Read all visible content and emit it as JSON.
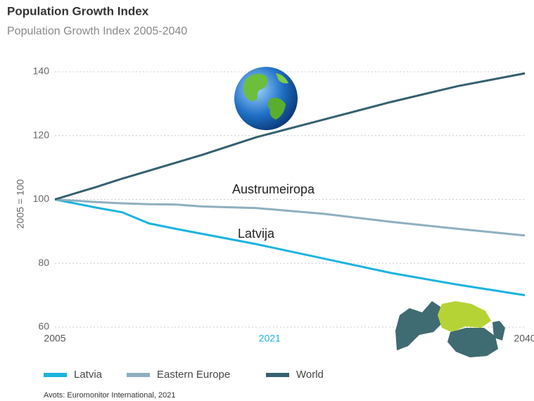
{
  "chart_data": {
    "type": "line",
    "title": "Population Growth Index",
    "subtitle": "Population Growth Index 2005-2040",
    "y_label": "2005 = 100",
    "x": [
      2005,
      2008,
      2010,
      2012,
      2014,
      2016,
      2020,
      2025,
      2030,
      2035,
      2040
    ],
    "series": [
      {
        "name": "Latvia",
        "color": "#1ab4dd",
        "values": [
          100,
          97.5,
          96,
          92.5,
          90.8,
          89.2,
          86,
          81.5,
          77,
          73.3,
          70
        ]
      },
      {
        "name": "Eastern Europe",
        "color": "#8fafc0",
        "values": [
          100,
          99.2,
          98.8,
          98.5,
          98.4,
          97.8,
          97.3,
          95.5,
          93,
          90.8,
          88.7
        ]
      },
      {
        "name": "World",
        "color": "#34606f",
        "values": [
          100,
          103.8,
          106.5,
          109,
          111.5,
          114,
          119.5,
          125,
          130.5,
          135.5,
          139.5
        ]
      }
    ],
    "xlim": [
      2005,
      2040
    ],
    "xticks": [
      2005,
      2021,
      2040
    ],
    "xtick_colors": [
      "#555555",
      "#1ab4dd",
      "#555555"
    ],
    "ylim": [
      60,
      140
    ],
    "yticks": [
      60,
      80,
      100,
      120,
      140
    ],
    "grid": true,
    "annotations": [
      "Austrumeiropa",
      "Latvija"
    ],
    "source": "Avots: Euromonitor International, 2021"
  }
}
